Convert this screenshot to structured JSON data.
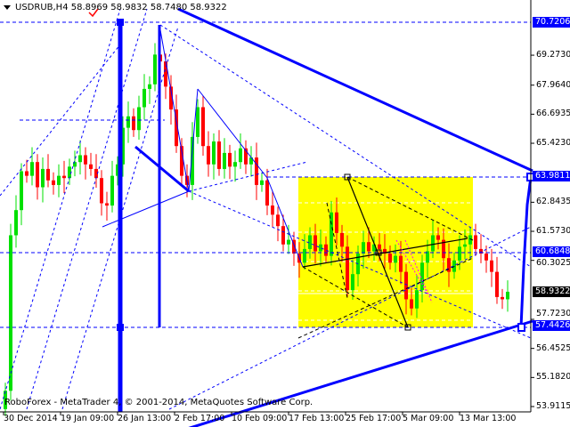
{
  "header": {
    "symbol": "USDRUB,H4",
    "open": "58.8969",
    "high": "58.9832",
    "low": "58.7480",
    "close": "58.9322"
  },
  "footer": {
    "copyright": "RoboForex - MetaTrader 4, © 2001-2014, MetaQuotes Software Corp."
  },
  "colors": {
    "bull": "#00e000",
    "bear": "#ff0000",
    "lines": "#0000ff",
    "zone": "#ffff00",
    "bid_badge": "#000000"
  },
  "chart_data": {
    "type": "candlestick",
    "ylim": [
      53.9115,
      70.9
    ],
    "y_ticks": [
      "69.2730",
      "67.9640",
      "66.6935",
      "65.4230",
      "62.8435",
      "61.5730",
      "60.3025",
      "57.7230",
      "56.4525",
      "55.1820",
      "53.9115"
    ],
    "price_badges": [
      {
        "label": "70.7206",
        "value": 70.7206,
        "color": "#0000ff"
      },
      {
        "label": "63.9811",
        "value": 63.9811,
        "color": "#0000ff"
      },
      {
        "label": "60.6848",
        "value": 60.6848,
        "color": "#0000ff"
      },
      {
        "label": "58.9322",
        "value": 58.9322,
        "color": "#000000"
      },
      {
        "label": "57.4426",
        "value": 57.4426,
        "color": "#0000ff"
      }
    ],
    "x_labels": [
      "30 Dec 2014",
      "19 Jan 09:00",
      "26 Jan 13:00",
      "2 Feb 17:00",
      "10 Feb 09:00",
      "17 Feb 13:00",
      "25 Feb 17:00",
      "5 Mar 09:00",
      "13 Mar 13:00"
    ],
    "closes": [
      54.6,
      61.4,
      62.5,
      64.2,
      64.0,
      64.6,
      63.5,
      64.3,
      63.8,
      63.6,
      64.0,
      63.9,
      64.4,
      64.6,
      64.9,
      64.5,
      64.3,
      63.9,
      62.8,
      62.7,
      64.0,
      64.5,
      66.1,
      66.6,
      66.0,
      67.0,
      67.8,
      68.0,
      69.3,
      69.0,
      67.9,
      66.9,
      65.3,
      64.0,
      63.6,
      65.7,
      67.0,
      65.3,
      64.5,
      65.5,
      64.3,
      65.0,
      64.4,
      64.6,
      65.2,
      64.5,
      64.8,
      63.6,
      63.8,
      62.7,
      62.3,
      61.8,
      61.0,
      61.2,
      60.6,
      60.2,
      60.8,
      61.4,
      60.7,
      61.0,
      60.5,
      62.4,
      61.5,
      60.9,
      59.0,
      59.7,
      60.6,
      61.1,
      60.7,
      61.0,
      60.8,
      60.6,
      60.2,
      60.5,
      59.8,
      58.6,
      58.2,
      59.0,
      60.2,
      60.7,
      61.4,
      61.2,
      60.4,
      59.8,
      60.3,
      60.9,
      61.0,
      61.4,
      60.8,
      60.6,
      60.3,
      59.8,
      58.7,
      58.6,
      58.93
    ]
  }
}
